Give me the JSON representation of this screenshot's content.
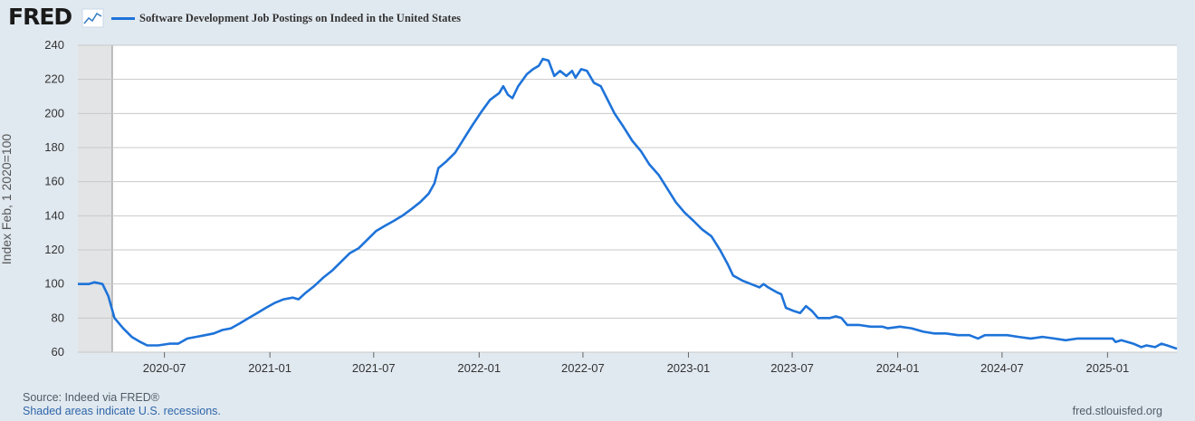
{
  "header": {
    "logo_text": "FRED",
    "logo_icon": "line-chart-icon"
  },
  "footer": {
    "source": "Source: Indeed via FRED®",
    "recession_note": "Shaded areas indicate U.S. recessions.",
    "site": "fred.stlouisfed.org"
  },
  "colors": {
    "series": "#1e73d9",
    "background": "#e1e9f0",
    "plot": "#ffffff",
    "grid": "#c8c8c8",
    "recession": "#e2e4e6"
  },
  "chart_data": {
    "type": "line",
    "title": "",
    "xlabel": "",
    "ylabel": "Index Feb, 1 2020=100",
    "xlim": [
      "2020-02-01",
      "2025-05-02"
    ],
    "ylim": [
      60,
      240
    ],
    "yticks": [
      60,
      80,
      100,
      120,
      140,
      160,
      180,
      200,
      220,
      240
    ],
    "xticks": [
      "2020-07",
      "2021-01",
      "2021-07",
      "2022-01",
      "2022-07",
      "2023-01",
      "2023-07",
      "2024-01",
      "2024-07",
      "2025-01"
    ],
    "grid": true,
    "legend": "top-left",
    "recessions": [
      {
        "start": "2020-02-01",
        "end": "2020-04-01"
      }
    ],
    "series": [
      {
        "name": "Software Development Job Postings on Indeed in the United States",
        "points": [
          [
            "2020-02-01",
            100
          ],
          [
            "2020-02-20",
            100
          ],
          [
            "2020-03-01",
            101
          ],
          [
            "2020-03-15",
            100
          ],
          [
            "2020-03-25",
            93
          ],
          [
            "2020-04-05",
            80
          ],
          [
            "2020-04-20",
            74
          ],
          [
            "2020-05-05",
            69
          ],
          [
            "2020-05-20",
            66
          ],
          [
            "2020-06-01",
            64
          ],
          [
            "2020-06-20",
            64
          ],
          [
            "2020-07-10",
            65
          ],
          [
            "2020-07-25",
            65
          ],
          [
            "2020-08-10",
            68
          ],
          [
            "2020-08-25",
            69
          ],
          [
            "2020-09-10",
            70
          ],
          [
            "2020-09-25",
            71
          ],
          [
            "2020-10-10",
            73
          ],
          [
            "2020-10-25",
            74
          ],
          [
            "2020-11-10",
            77
          ],
          [
            "2020-11-25",
            80
          ],
          [
            "2020-12-10",
            83
          ],
          [
            "2020-12-25",
            86
          ],
          [
            "2021-01-10",
            89
          ],
          [
            "2021-01-25",
            91
          ],
          [
            "2021-02-10",
            92
          ],
          [
            "2021-02-20",
            91
          ],
          [
            "2021-03-05",
            95
          ],
          [
            "2021-03-20",
            99
          ],
          [
            "2021-04-05",
            104
          ],
          [
            "2021-04-20",
            108
          ],
          [
            "2021-05-05",
            113
          ],
          [
            "2021-05-20",
            118
          ],
          [
            "2021-06-05",
            121
          ],
          [
            "2021-06-20",
            126
          ],
          [
            "2021-07-05",
            131
          ],
          [
            "2021-07-20",
            134
          ],
          [
            "2021-08-05",
            137
          ],
          [
            "2021-08-20",
            140
          ],
          [
            "2021-09-05",
            144
          ],
          [
            "2021-09-20",
            148
          ],
          [
            "2021-10-05",
            153
          ],
          [
            "2021-10-15",
            159
          ],
          [
            "2021-10-22",
            168
          ],
          [
            "2021-11-05",
            172
          ],
          [
            "2021-11-20",
            177
          ],
          [
            "2021-12-05",
            185
          ],
          [
            "2021-12-20",
            193
          ],
          [
            "2022-01-05",
            201
          ],
          [
            "2022-01-20",
            208
          ],
          [
            "2022-02-05",
            212
          ],
          [
            "2022-02-12",
            216
          ],
          [
            "2022-02-20",
            211
          ],
          [
            "2022-02-28",
            209
          ],
          [
            "2022-03-10",
            216
          ],
          [
            "2022-03-25",
            223
          ],
          [
            "2022-04-05",
            226
          ],
          [
            "2022-04-15",
            228
          ],
          [
            "2022-04-22",
            232
          ],
          [
            "2022-05-02",
            231
          ],
          [
            "2022-05-12",
            222
          ],
          [
            "2022-05-22",
            225
          ],
          [
            "2022-06-02",
            222
          ],
          [
            "2022-06-12",
            225
          ],
          [
            "2022-06-18",
            221
          ],
          [
            "2022-06-28",
            226
          ],
          [
            "2022-07-08",
            225
          ],
          [
            "2022-07-20",
            218
          ],
          [
            "2022-08-01",
            216
          ],
          [
            "2022-08-10",
            210
          ],
          [
            "2022-08-25",
            200
          ],
          [
            "2022-09-10",
            192
          ],
          [
            "2022-09-25",
            184
          ],
          [
            "2022-10-10",
            178
          ],
          [
            "2022-10-25",
            170
          ],
          [
            "2022-11-10",
            164
          ],
          [
            "2022-11-25",
            156
          ],
          [
            "2022-12-10",
            148
          ],
          [
            "2022-12-25",
            142
          ],
          [
            "2023-01-10",
            137
          ],
          [
            "2023-01-25",
            132
          ],
          [
            "2023-02-10",
            128
          ],
          [
            "2023-02-25",
            120
          ],
          [
            "2023-03-10",
            112
          ],
          [
            "2023-03-20",
            105
          ],
          [
            "2023-04-05",
            102
          ],
          [
            "2023-04-20",
            100
          ],
          [
            "2023-05-05",
            98
          ],
          [
            "2023-05-12",
            100
          ],
          [
            "2023-05-20",
            98
          ],
          [
            "2023-06-05",
            95
          ],
          [
            "2023-06-12",
            94
          ],
          [
            "2023-06-20",
            86
          ],
          [
            "2023-07-05",
            84
          ],
          [
            "2023-07-15",
            83
          ],
          [
            "2023-07-25",
            87
          ],
          [
            "2023-08-05",
            84
          ],
          [
            "2023-08-15",
            80
          ],
          [
            "2023-08-25",
            80
          ],
          [
            "2023-09-05",
            80
          ],
          [
            "2023-09-15",
            81
          ],
          [
            "2023-09-25",
            80
          ],
          [
            "2023-10-05",
            76
          ],
          [
            "2023-10-25",
            76
          ],
          [
            "2023-11-15",
            75
          ],
          [
            "2023-12-05",
            75
          ],
          [
            "2023-12-15",
            74
          ],
          [
            "2024-01-05",
            75
          ],
          [
            "2024-01-25",
            74
          ],
          [
            "2024-02-15",
            72
          ],
          [
            "2024-03-05",
            71
          ],
          [
            "2024-03-25",
            71
          ],
          [
            "2024-04-15",
            70
          ],
          [
            "2024-05-05",
            70
          ],
          [
            "2024-05-20",
            68
          ],
          [
            "2024-06-01",
            70
          ],
          [
            "2024-06-20",
            70
          ],
          [
            "2024-07-10",
            70
          ],
          [
            "2024-07-30",
            69
          ],
          [
            "2024-08-20",
            68
          ],
          [
            "2024-09-10",
            69
          ],
          [
            "2024-09-30",
            68
          ],
          [
            "2024-10-20",
            67
          ],
          [
            "2024-11-10",
            68
          ],
          [
            "2024-11-30",
            68
          ],
          [
            "2024-12-20",
            68
          ],
          [
            "2025-01-10",
            68
          ],
          [
            "2025-01-15",
            66
          ],
          [
            "2025-01-25",
            67
          ],
          [
            "2025-02-15",
            65
          ],
          [
            "2025-03-01",
            63
          ],
          [
            "2025-03-10",
            64
          ],
          [
            "2025-03-25",
            63
          ],
          [
            "2025-04-05",
            65
          ],
          [
            "2025-04-15",
            64
          ],
          [
            "2025-05-02",
            62
          ]
        ]
      }
    ]
  }
}
